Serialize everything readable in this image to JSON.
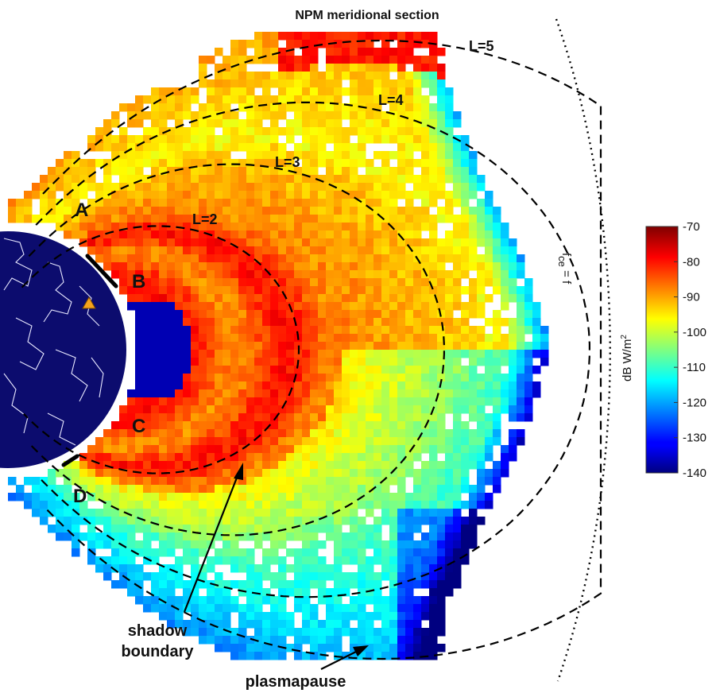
{
  "chart_data": {
    "type": "heatmap",
    "title": "NPM meridional section",
    "colorbar": {
      "label": "dB W/m",
      "label_superscript": "2",
      "range": [
        -140,
        -70
      ],
      "ticks": [
        -70,
        -80,
        -90,
        -100,
        -110,
        -120,
        -130,
        -140
      ],
      "colormap": "jet"
    },
    "l_shells": [
      {
        "label": "L=2",
        "L": 2
      },
      {
        "label": "L=3",
        "L": 3
      },
      {
        "label": "L=4",
        "L": 4
      },
      {
        "label": "L=5",
        "L": 5
      }
    ],
    "region_labels": [
      "A",
      "B",
      "C",
      "D"
    ],
    "curve_label": {
      "text": "f",
      "subscript": "ce",
      "suffix": " = f"
    },
    "annotations": [
      {
        "lines": [
          "shadow",
          "boundary"
        ]
      },
      {
        "lines": [
          "plasmapause"
        ]
      }
    ],
    "transmitter_marker": "triangle"
  }
}
